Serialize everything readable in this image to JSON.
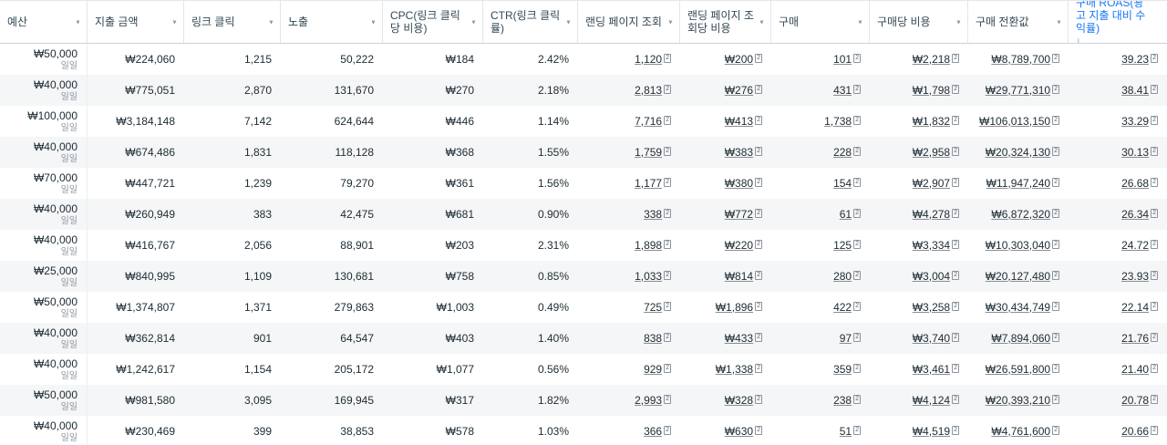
{
  "accent_color": "#1877f2",
  "chevron_icon": "▼",
  "sort_arrow": "↓",
  "attribution_badge": "2",
  "budget_sub_label": "일일",
  "underlined_columns": [
    "lpv",
    "cost_per_lpv",
    "purchases",
    "cost_per_purchase",
    "purchase_value",
    "roas"
  ],
  "columns": [
    {
      "key": "budget",
      "label": "예산"
    },
    {
      "key": "spend",
      "label": "지출 금액"
    },
    {
      "key": "link_clicks",
      "label": "링크 클릭"
    },
    {
      "key": "impressions",
      "label": "노출"
    },
    {
      "key": "cpc",
      "label": "CPC(링크 클릭당 비용)"
    },
    {
      "key": "ctr",
      "label": "CTR(링크 클릭률)"
    },
    {
      "key": "lpv",
      "label": "랜딩 페이지 조회"
    },
    {
      "key": "cost_per_lpv",
      "label": "랜딩 페이지 조회당 비용"
    },
    {
      "key": "purchases",
      "label": "구매"
    },
    {
      "key": "cost_per_purchase",
      "label": "구매당 비용"
    },
    {
      "key": "purchase_value",
      "label": "구매 전환값"
    },
    {
      "key": "roas",
      "label": "구매 ROAS(광고 지출 대비 수익률)",
      "sorted": "desc"
    }
  ],
  "rows": [
    {
      "budget": "₩50,000",
      "spend": "₩224,060",
      "link_clicks": "1,215",
      "impressions": "50,222",
      "cpc": "₩184",
      "ctr": "2.42%",
      "lpv": "1,120",
      "cost_per_lpv": "₩200",
      "purchases": "101",
      "cost_per_purchase": "₩2,218",
      "purchase_value": "₩8,789,700",
      "roas": "39.23"
    },
    {
      "budget": "₩40,000",
      "spend": "₩775,051",
      "link_clicks": "2,870",
      "impressions": "131,670",
      "cpc": "₩270",
      "ctr": "2.18%",
      "lpv": "2,813",
      "cost_per_lpv": "₩276",
      "purchases": "431",
      "cost_per_purchase": "₩1,798",
      "purchase_value": "₩29,771,310",
      "roas": "38.41"
    },
    {
      "budget": "₩100,000",
      "spend": "₩3,184,148",
      "link_clicks": "7,142",
      "impressions": "624,644",
      "cpc": "₩446",
      "ctr": "1.14%",
      "lpv": "7,716",
      "cost_per_lpv": "₩413",
      "purchases": "1,738",
      "cost_per_purchase": "₩1,832",
      "purchase_value": "₩106,013,150",
      "roas": "33.29"
    },
    {
      "budget": "₩40,000",
      "spend": "₩674,486",
      "link_clicks": "1,831",
      "impressions": "118,128",
      "cpc": "₩368",
      "ctr": "1.55%",
      "lpv": "1,759",
      "cost_per_lpv": "₩383",
      "purchases": "228",
      "cost_per_purchase": "₩2,958",
      "purchase_value": "₩20,324,130",
      "roas": "30.13"
    },
    {
      "budget": "₩70,000",
      "spend": "₩447,721",
      "link_clicks": "1,239",
      "impressions": "79,270",
      "cpc": "₩361",
      "ctr": "1.56%",
      "lpv": "1,177",
      "cost_per_lpv": "₩380",
      "purchases": "154",
      "cost_per_purchase": "₩2,907",
      "purchase_value": "₩11,947,240",
      "roas": "26.68"
    },
    {
      "budget": "₩40,000",
      "spend": "₩260,949",
      "link_clicks": "383",
      "impressions": "42,475",
      "cpc": "₩681",
      "ctr": "0.90%",
      "lpv": "338",
      "cost_per_lpv": "₩772",
      "purchases": "61",
      "cost_per_purchase": "₩4,278",
      "purchase_value": "₩6,872,320",
      "roas": "26.34"
    },
    {
      "budget": "₩40,000",
      "spend": "₩416,767",
      "link_clicks": "2,056",
      "impressions": "88,901",
      "cpc": "₩203",
      "ctr": "2.31%",
      "lpv": "1,898",
      "cost_per_lpv": "₩220",
      "purchases": "125",
      "cost_per_purchase": "₩3,334",
      "purchase_value": "₩10,303,040",
      "roas": "24.72"
    },
    {
      "budget": "₩25,000",
      "spend": "₩840,995",
      "link_clicks": "1,109",
      "impressions": "130,681",
      "cpc": "₩758",
      "ctr": "0.85%",
      "lpv": "1,033",
      "cost_per_lpv": "₩814",
      "purchases": "280",
      "cost_per_purchase": "₩3,004",
      "purchase_value": "₩20,127,480",
      "roas": "23.93"
    },
    {
      "budget": "₩50,000",
      "spend": "₩1,374,807",
      "link_clicks": "1,371",
      "impressions": "279,863",
      "cpc": "₩1,003",
      "ctr": "0.49%",
      "lpv": "725",
      "cost_per_lpv": "₩1,896",
      "purchases": "422",
      "cost_per_purchase": "₩3,258",
      "purchase_value": "₩30,434,749",
      "roas": "22.14"
    },
    {
      "budget": "₩40,000",
      "spend": "₩362,814",
      "link_clicks": "901",
      "impressions": "64,547",
      "cpc": "₩403",
      "ctr": "1.40%",
      "lpv": "838",
      "cost_per_lpv": "₩433",
      "purchases": "97",
      "cost_per_purchase": "₩3,740",
      "purchase_value": "₩7,894,060",
      "roas": "21.76"
    },
    {
      "budget": "₩40,000",
      "spend": "₩1,242,617",
      "link_clicks": "1,154",
      "impressions": "205,172",
      "cpc": "₩1,077",
      "ctr": "0.56%",
      "lpv": "929",
      "cost_per_lpv": "₩1,338",
      "purchases": "359",
      "cost_per_purchase": "₩3,461",
      "purchase_value": "₩26,591,800",
      "roas": "21.40"
    },
    {
      "budget": "₩50,000",
      "spend": "₩981,580",
      "link_clicks": "3,095",
      "impressions": "169,945",
      "cpc": "₩317",
      "ctr": "1.82%",
      "lpv": "2,993",
      "cost_per_lpv": "₩328",
      "purchases": "238",
      "cost_per_purchase": "₩4,124",
      "purchase_value": "₩20,393,210",
      "roas": "20.78"
    },
    {
      "budget": "₩40,000",
      "spend": "₩230,469",
      "link_clicks": "399",
      "impressions": "38,853",
      "cpc": "₩578",
      "ctr": "1.03%",
      "lpv": "366",
      "cost_per_lpv": "₩630",
      "purchases": "51",
      "cost_per_purchase": "₩4,519",
      "purchase_value": "₩4,761,600",
      "roas": "20.66"
    }
  ]
}
